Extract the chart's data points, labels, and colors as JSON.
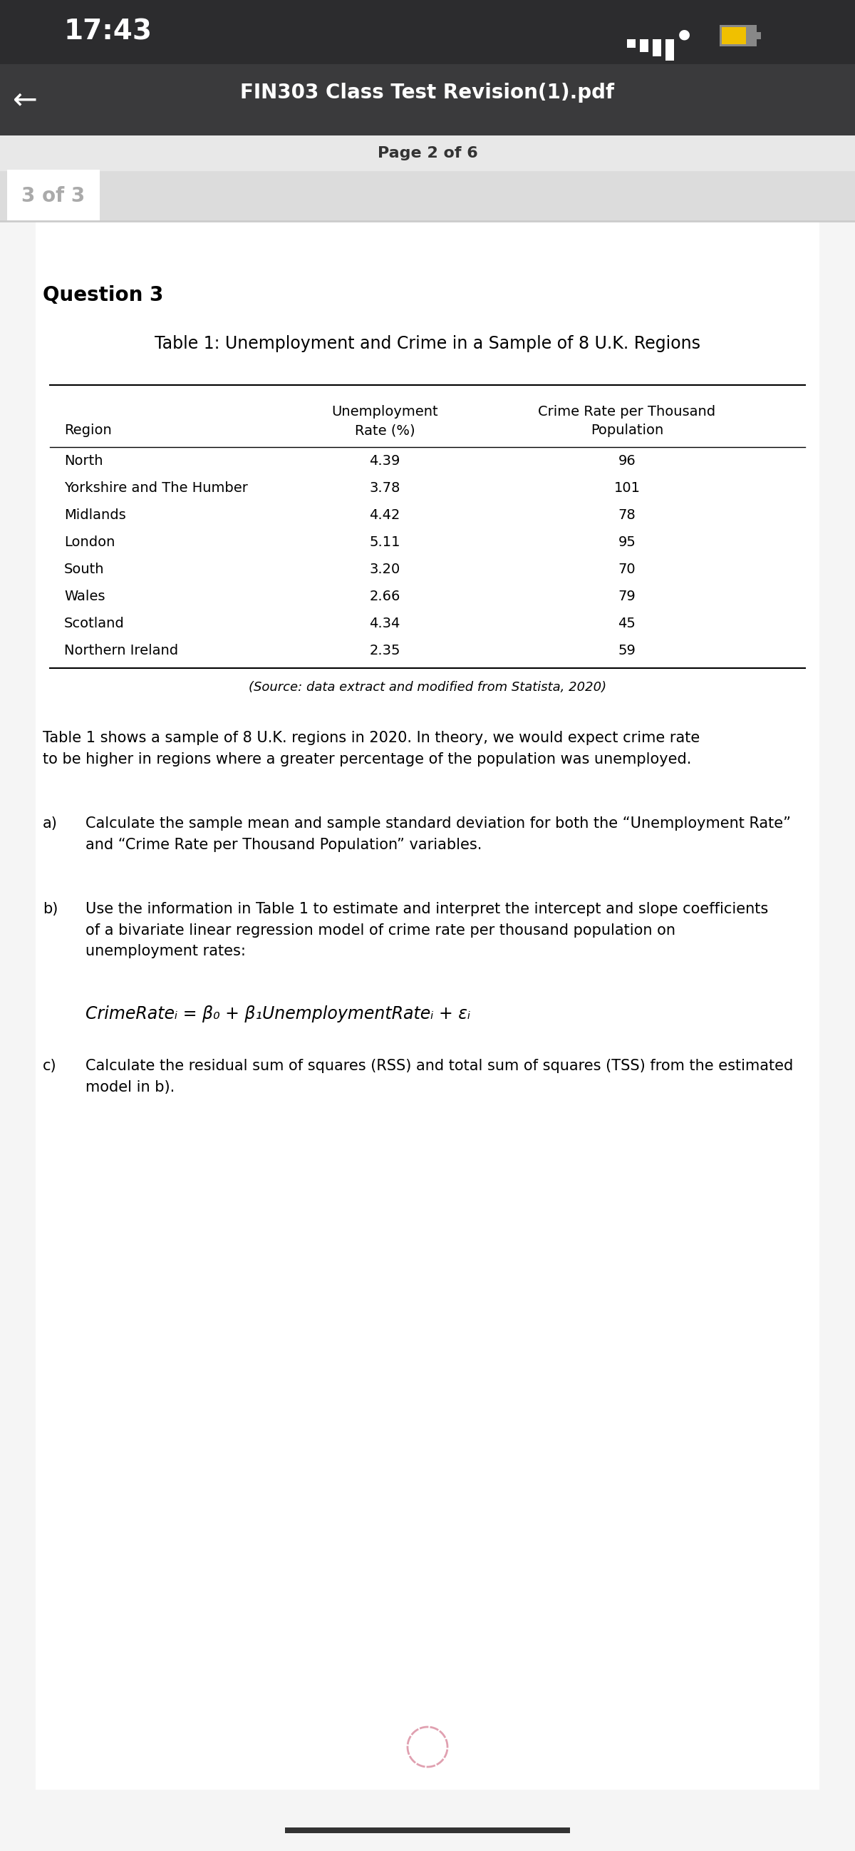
{
  "status_bar_bg": "#2c2c2e",
  "status_bar_time": "17:43",
  "nav_bar_bg": "#3a3a3c",
  "nav_bar_title": "FIN303 Class Test Revision(1).pdf",
  "page_indicator": "Page 2 of 6",
  "tab_label": "3 of 3",
  "content_bg": "#f5f5f5",
  "page_bg": "#ffffff",
  "question_label": "Question 3",
  "table_title": "Table 1: Unemployment and Crime in a Sample of 8 U.K. Regions",
  "table_col1_header": "Region",
  "table_col2_header_line1": "Unemployment",
  "table_col2_header_line2": "Rate (%)",
  "table_col3_header_line1": "Crime Rate per Thousand",
  "table_col3_header_line2": "Population",
  "table_regions": [
    "North",
    "Yorkshire and The Humber",
    "Midlands",
    "London",
    "South",
    "Wales",
    "Scotland",
    "Northern Ireland"
  ],
  "table_unemployment": [
    4.39,
    3.78,
    4.42,
    5.11,
    3.2,
    2.66,
    4.34,
    2.35
  ],
  "table_crime": [
    96,
    101,
    78,
    95,
    70,
    79,
    45,
    59
  ],
  "table_source": "(Source: data extract and modified from Statista, 2020)",
  "para1": "Table 1 shows a sample of 8 U.K. regions in 2020. In theory, we would expect crime rate\nto be higher in regions where a greater percentage of the population was unemployed.",
  "qa_label": "a)",
  "qa_text": "Calculate the sample mean and sample standard deviation for both the “Unemployment Rate”\nand “Crime Rate per Thousand Population” variables.",
  "qb_label": "b)",
  "qb_text": "Use the information in Table 1 to estimate and interpret the intercept and slope coefficients\nof a bivariate linear regression model of crime rate per thousand population on\nunemployment rates:",
  "equation": "CrimeRateᵢ = β₀ + β₁UnemploymentRateᵢ + εᵢ",
  "qc_label": "c)",
  "qc_text": "Calculate the residual sum of squares (RSS) and total sum of squares (TSS) from the estimated\nmodel in b).",
  "spinner_color": "#e0a0b0",
  "home_bar_color": "#333333",
  "back_arrow_color": "#ffffff",
  "signal_color": "#ffffff",
  "battery_color": "#f0c000"
}
